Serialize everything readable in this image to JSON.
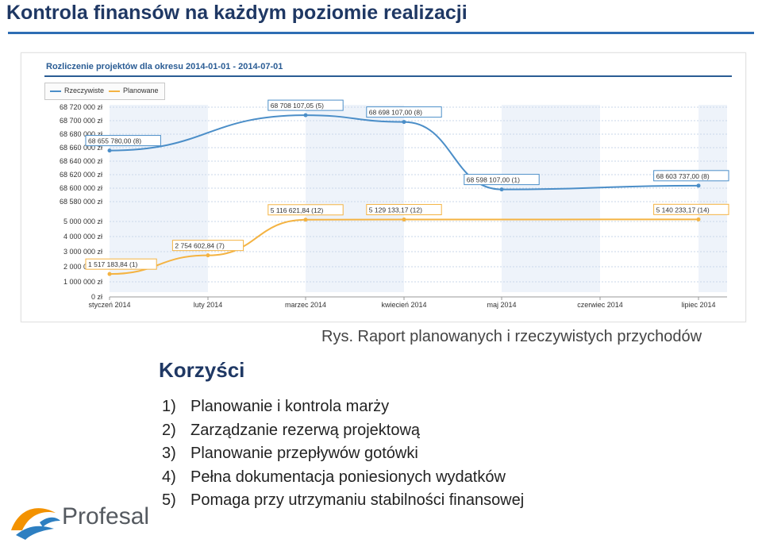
{
  "slide": {
    "title": "Kontrola finansów na każdym poziomie realizacji",
    "caption": "Rys. Raport planowanych i rzeczywistych przychodów",
    "benefits_title": "Korzyści",
    "benefits": [
      {
        "num": "1)",
        "text": "Planowanie i kontrola marży"
      },
      {
        "num": "2)",
        "text": "Zarządzanie rezerwą projektową"
      },
      {
        "num": "3)",
        "text": "Planowanie przepływów gotówki"
      },
      {
        "num": "4)",
        "text": "Pełna dokumentacja poniesionych wydatków"
      },
      {
        "num": "5)",
        "text": "Pomaga przy utrzymaniu stabilności finansowej"
      }
    ],
    "logo_text": "Profesal",
    "colors": {
      "title": "#1f3864",
      "actual": "#4b8ec8",
      "planned": "#f4b342",
      "logo_orange": "#f39200",
      "logo_blue": "#2d7fc1"
    }
  },
  "chart_data": [
    {
      "type": "line",
      "title": "Rozliczenie projektów dla okresu 2014-01-01 - 2014-07-01",
      "legend": [
        "Rzeczywiste",
        "Planowane"
      ],
      "legend_placement": "top-left",
      "x": [
        "styczeń 2014",
        "luty 2014",
        "marzec 2014",
        "kwiecień 2014",
        "maj 2014",
        "czerwiec 2014",
        "lipiec 2014"
      ],
      "series": [
        {
          "name": "Rzeczywiste",
          "color": "#4b8ec8",
          "points": [
            {
              "x": "styczeń 2014",
              "y": 68655780.0,
              "label": "68 655 780,00 (8)"
            },
            {
              "x": "marzec 2014",
              "y": 68708107.05,
              "label": "68 708 107,05 (5)"
            },
            {
              "x": "kwiecień 2014",
              "y": 68698107.0,
              "label": "68 698 107,00 (8)"
            },
            {
              "x": "maj 2014",
              "y": 68598107.0,
              "label": "68 598 107,00 (1)"
            },
            {
              "x": "lipiec 2014",
              "y": 68603737.0,
              "label": "68 603 737,00 (8)"
            }
          ]
        }
      ],
      "yticks": [
        "68 720 000 zł",
        "68 700 000 zł",
        "68 680 000 zł",
        "68 660 000 zł",
        "68 640 000 zł",
        "68 620 000 zł",
        "68 600 000 zł",
        "68 580 000 zł"
      ],
      "ylim": [
        68580000,
        68720000
      ]
    },
    {
      "type": "line",
      "x": [
        "styczeń 2014",
        "luty 2014",
        "marzec 2014",
        "kwiecień 2014",
        "maj 2014",
        "czerwiec 2014",
        "lipiec 2014"
      ],
      "series": [
        {
          "name": "Planowane",
          "color": "#f4b342",
          "points": [
            {
              "x": "styczeń 2014",
              "y": 1517183.84,
              "label": "1 517 183,84 (1)"
            },
            {
              "x": "luty 2014",
              "y": 2754602.84,
              "label": "2 754 602,84 (7)"
            },
            {
              "x": "marzec 2014",
              "y": 5116621.84,
              "label": "5 116 621,84 (12)"
            },
            {
              "x": "kwiecień 2014",
              "y": 5129133.17,
              "label": "5 129 133,17 (12)"
            },
            {
              "x": "lipiec 2014",
              "y": 5140233.17,
              "label": "5 140 233,17 (14)"
            }
          ]
        }
      ],
      "yticks": [
        "5 000 000 zł",
        "4 000 000 zł",
        "3 000 000 zł",
        "2 000 000 zł",
        "1 000 000 zł",
        "0 zł"
      ],
      "ylim": [
        0,
        5000000
      ]
    }
  ]
}
